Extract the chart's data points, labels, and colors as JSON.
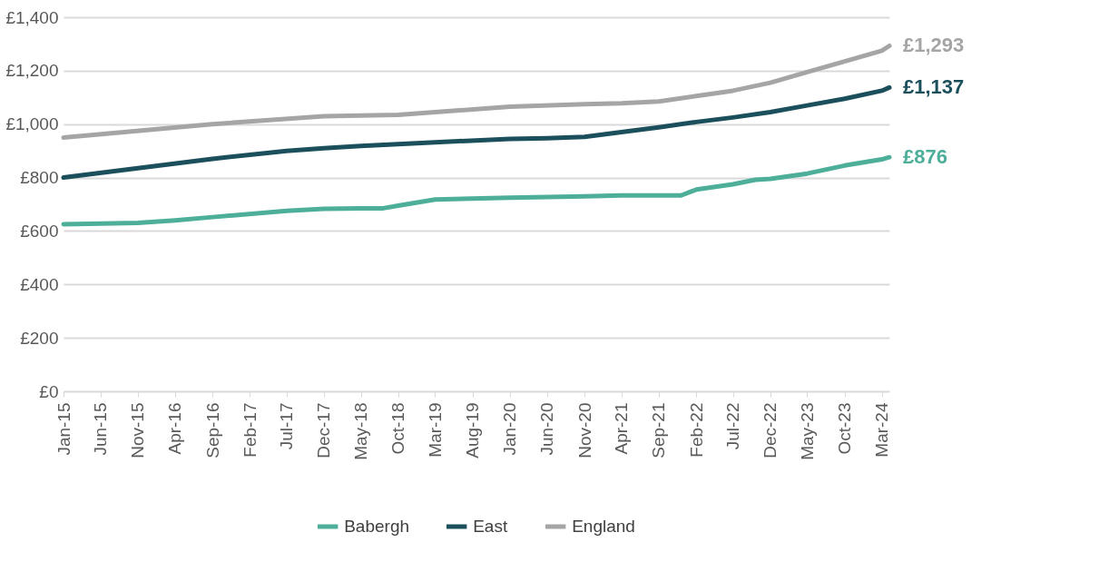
{
  "chart_data": {
    "type": "line",
    "ylim": [
      0,
      1400
    ],
    "yticks": [
      {
        "value": 0,
        "label": "£0"
      },
      {
        "value": 200,
        "label": "£200"
      },
      {
        "value": 400,
        "label": "£400"
      },
      {
        "value": 600,
        "label": "£600"
      },
      {
        "value": 800,
        "label": "£800"
      },
      {
        "value": 1000,
        "label": "£1,000"
      },
      {
        "value": 1200,
        "label": "£1,200"
      },
      {
        "value": 1400,
        "label": "£1,400"
      }
    ],
    "xlim": [
      "2015-01",
      "2024-04"
    ],
    "xticks": [
      {
        "value": "2015-01",
        "label": "Jan-15"
      },
      {
        "value": "2015-06",
        "label": "Jun-15"
      },
      {
        "value": "2015-11",
        "label": "Nov-15"
      },
      {
        "value": "2016-04",
        "label": "Apr-16"
      },
      {
        "value": "2016-09",
        "label": "Sep-16"
      },
      {
        "value": "2017-02",
        "label": "Feb-17"
      },
      {
        "value": "2017-07",
        "label": "Jul-17"
      },
      {
        "value": "2017-12",
        "label": "Dec-17"
      },
      {
        "value": "2018-05",
        "label": "May-18"
      },
      {
        "value": "2018-10",
        "label": "Oct-18"
      },
      {
        "value": "2019-03",
        "label": "Mar-19"
      },
      {
        "value": "2019-08",
        "label": "Aug-19"
      },
      {
        "value": "2020-01",
        "label": "Jan-20"
      },
      {
        "value": "2020-06",
        "label": "Jun-20"
      },
      {
        "value": "2020-11",
        "label": "Nov-20"
      },
      {
        "value": "2021-04",
        "label": "Apr-21"
      },
      {
        "value": "2021-09",
        "label": "Sep-21"
      },
      {
        "value": "2022-02",
        "label": "Feb-22"
      },
      {
        "value": "2022-07",
        "label": "Jul-22"
      },
      {
        "value": "2022-12",
        "label": "Dec-22"
      },
      {
        "value": "2023-05",
        "label": "May-23"
      },
      {
        "value": "2023-10",
        "label": "Oct-23"
      },
      {
        "value": "2024-03",
        "label": "Mar-24"
      }
    ],
    "grid": "y",
    "legend": "bottom",
    "line_style": "solid",
    "marker": "none",
    "series": [
      {
        "name": "Babergh",
        "color": "#4daf9a",
        "x": [
          "2015-01",
          "2015-11",
          "2016-04",
          "2016-09",
          "2017-07",
          "2017-12",
          "2018-05",
          "2018-08",
          "2018-10",
          "2019-03",
          "2020-01",
          "2020-11",
          "2021-04",
          "2021-12",
          "2022-02",
          "2022-07",
          "2022-10",
          "2022-12",
          "2023-05",
          "2023-10",
          "2024-03",
          "2024-04"
        ],
        "values": [
          625,
          630,
          640,
          652,
          675,
          683,
          685,
          685,
          695,
          718,
          725,
          730,
          733,
          733,
          755,
          775,
          792,
          795,
          815,
          845,
          868,
          876
        ],
        "value_labels": [
          null,
          null,
          null,
          null,
          null,
          null,
          null,
          null,
          null,
          null,
          null,
          null,
          null,
          null,
          null,
          null,
          null,
          null,
          null,
          null,
          null,
          "£876"
        ]
      },
      {
        "name": "East",
        "color": "#1b4f5c",
        "x": [
          "2015-01",
          "2015-11",
          "2016-09",
          "2017-07",
          "2017-12",
          "2018-05",
          "2018-10",
          "2019-03",
          "2020-01",
          "2020-06",
          "2020-11",
          "2021-04",
          "2021-09",
          "2022-02",
          "2022-07",
          "2022-12",
          "2023-05",
          "2023-10",
          "2024-03",
          "2024-04"
        ],
        "values": [
          800,
          835,
          870,
          900,
          910,
          918,
          925,
          932,
          945,
          947,
          952,
          970,
          988,
          1008,
          1025,
          1045,
          1070,
          1095,
          1125,
          1137
        ],
        "value_labels": [
          null,
          null,
          null,
          null,
          null,
          null,
          null,
          null,
          null,
          null,
          null,
          null,
          null,
          null,
          null,
          null,
          null,
          null,
          null,
          "£1,137"
        ]
      },
      {
        "name": "England",
        "color": "#a5a5a5",
        "x": [
          "2015-01",
          "2016-09",
          "2017-12",
          "2018-10",
          "2019-03",
          "2020-01",
          "2020-11",
          "2021-04",
          "2021-09",
          "2022-02",
          "2022-07",
          "2022-12",
          "2023-05",
          "2023-10",
          "2024-03",
          "2024-04"
        ],
        "values": [
          950,
          1000,
          1030,
          1035,
          1045,
          1065,
          1075,
          1078,
          1085,
          1105,
          1125,
          1155,
          1195,
          1235,
          1275,
          1293
        ],
        "value_labels": [
          null,
          null,
          null,
          null,
          null,
          null,
          null,
          null,
          null,
          null,
          null,
          null,
          null,
          null,
          null,
          "£1,293"
        ]
      }
    ]
  }
}
